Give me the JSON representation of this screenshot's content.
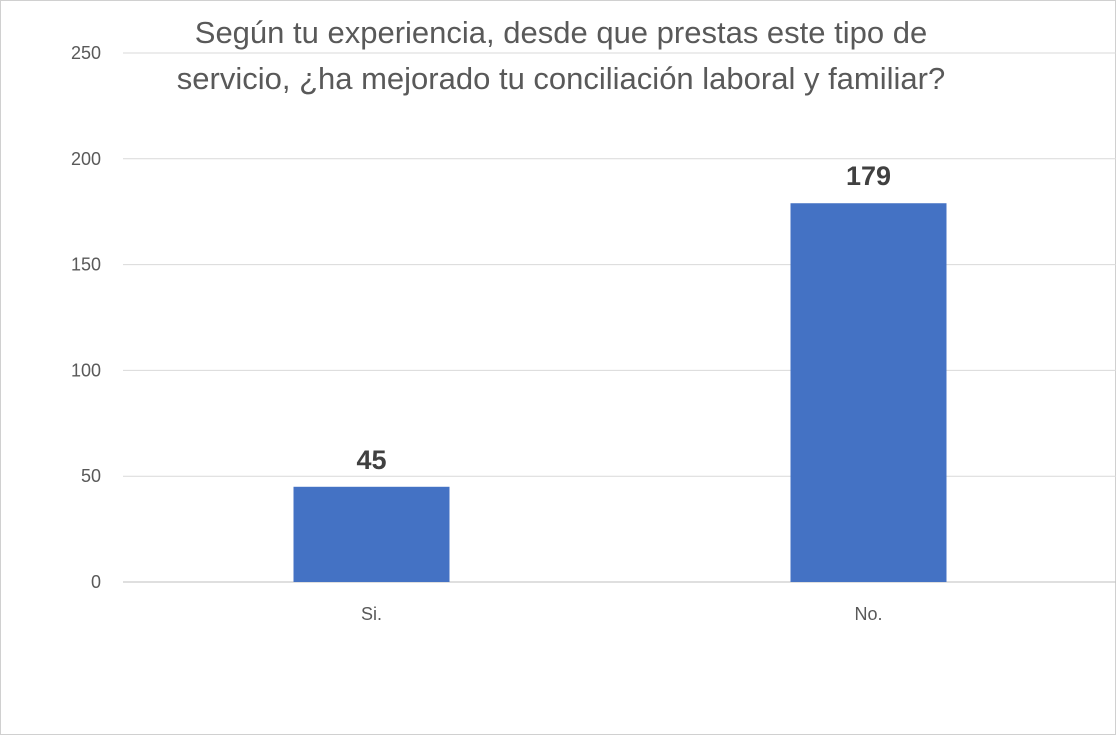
{
  "chart_data": {
    "type": "bar",
    "title_lines": [
      "Según tu experiencia, desde que prestas este tipo de",
      "servicio, ¿ha mejorado tu conciliación laboral y familiar?"
    ],
    "categories": [
      "Si.",
      "No."
    ],
    "values": [
      45,
      179
    ],
    "data_labels": [
      "45",
      "179"
    ],
    "yticks": [
      "0",
      "50",
      "100",
      "150",
      "200",
      "250"
    ],
    "ylim": [
      0,
      250
    ],
    "grid": true,
    "legend": "none",
    "xlabel": "",
    "ylabel": "",
    "bar_color": "#4472C4"
  }
}
